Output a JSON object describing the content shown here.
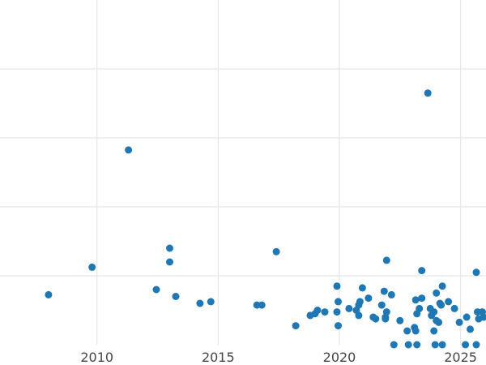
{
  "chart_data": {
    "type": "scatter",
    "title": "",
    "xlabel": "",
    "ylabel": "",
    "xlim": [
      2006,
      2026.05
    ],
    "ylim": [
      0,
      100
    ],
    "grid": true,
    "x_ticks": [
      2010,
      2015,
      2020,
      2025
    ],
    "x_tick_labels": [
      "2010",
      "2015",
      "2020",
      "2025"
    ],
    "y_gridlines": [
      20,
      40,
      60,
      80
    ],
    "point_color": "#1f77b4",
    "series": [
      {
        "values": [
          [
            2008.0,
            14.5
          ],
          [
            2009.8,
            22.5
          ],
          [
            2011.3,
            56.5
          ],
          [
            2012.45,
            16.0
          ],
          [
            2013.0,
            28.0
          ],
          [
            2013.0,
            24.0
          ],
          [
            2013.25,
            14.0
          ],
          [
            2014.25,
            12.0
          ],
          [
            2014.7,
            12.5
          ],
          [
            2016.6,
            11.5
          ],
          [
            2016.8,
            11.5
          ],
          [
            2017.4,
            27.0
          ],
          [
            2018.2,
            5.5
          ],
          [
            2018.8,
            8.5
          ],
          [
            2019.0,
            9.0
          ],
          [
            2019.1,
            10.0
          ],
          [
            2019.4,
            9.5
          ],
          [
            2019.9,
            17.0
          ],
          [
            2019.95,
            12.5
          ],
          [
            2019.9,
            9.5
          ],
          [
            2019.95,
            5.5
          ],
          [
            2020.4,
            10.5
          ],
          [
            2020.7,
            10.0
          ],
          [
            2020.8,
            8.5
          ],
          [
            2020.8,
            11.5
          ],
          [
            2020.85,
            12.5
          ],
          [
            2020.95,
            16.5
          ],
          [
            2021.2,
            13.5
          ],
          [
            2021.4,
            8.0
          ],
          [
            2021.5,
            7.5
          ],
          [
            2021.75,
            11.5
          ],
          [
            2021.85,
            15.5
          ],
          [
            2021.95,
            9.5
          ],
          [
            2021.9,
            7.5
          ],
          [
            2021.9,
            8.0
          ],
          [
            2021.95,
            24.5
          ],
          [
            2022.15,
            14.5
          ],
          [
            2022.25,
            0.0
          ],
          [
            2022.5,
            7.0
          ],
          [
            2022.8,
            4.0
          ],
          [
            2022.85,
            0.0
          ],
          [
            2023.1,
            5.0
          ],
          [
            2023.15,
            4.0
          ],
          [
            2023.2,
            9.0
          ],
          [
            2023.15,
            13.0
          ],
          [
            2023.2,
            0.0
          ],
          [
            2023.3,
            10.5
          ],
          [
            2023.4,
            13.5
          ],
          [
            2023.4,
            21.5
          ],
          [
            2023.65,
            73.0
          ],
          [
            2023.75,
            10.5
          ],
          [
            2023.8,
            8.5
          ],
          [
            2023.9,
            9.5
          ],
          [
            2023.9,
            4.0
          ],
          [
            2023.95,
            0.0
          ],
          [
            2024.0,
            15.0
          ],
          [
            2024.1,
            6.5
          ],
          [
            2024.0,
            7.0
          ],
          [
            2024.15,
            12.0
          ],
          [
            2024.2,
            11.5
          ],
          [
            2024.25,
            17.0
          ],
          [
            2024.25,
            0.0
          ],
          [
            2024.5,
            12.5
          ],
          [
            2024.75,
            10.5
          ],
          [
            2024.95,
            6.5
          ],
          [
            2025.2,
            0.0
          ],
          [
            2025.25,
            8.0
          ],
          [
            2025.4,
            4.5
          ],
          [
            2025.65,
            21.0
          ],
          [
            2025.65,
            0.0
          ],
          [
            2025.7,
            9.5
          ],
          [
            2025.75,
            7.5
          ],
          [
            2025.9,
            9.5
          ],
          [
            2025.95,
            8.0
          ]
        ]
      }
    ]
  }
}
